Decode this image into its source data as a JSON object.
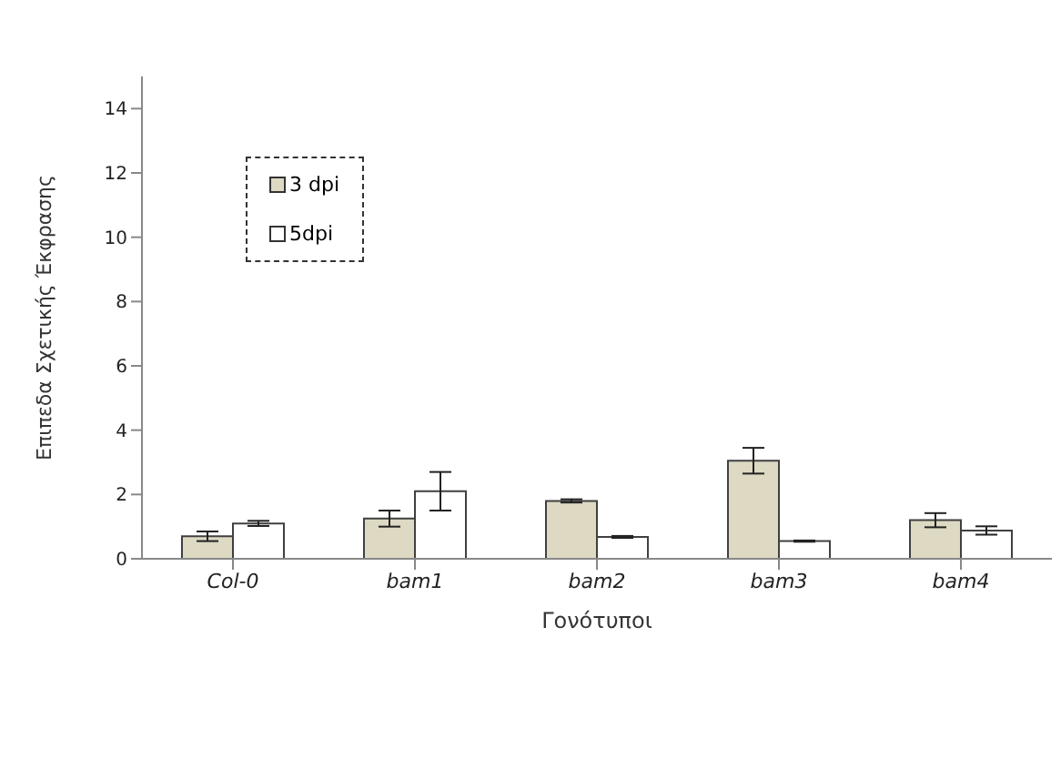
{
  "chart_data": {
    "type": "bar",
    "xlabel": "Γονότυποι",
    "ylabel": "Επιπεδα Σχετικής Έκφρασης",
    "categories": [
      "Col-0",
      "bam1",
      "bam2",
      "bam3",
      "bam4"
    ],
    "series": [
      {
        "name": "3 dpi",
        "color": "#ddd9c3",
        "values": [
          0.7,
          1.25,
          1.8,
          3.05,
          1.2
        ],
        "errors": [
          0.15,
          0.25,
          0.05,
          0.4,
          0.22
        ]
      },
      {
        "name": "5dpi",
        "color": "#ffffff",
        "values": [
          1.1,
          2.1,
          0.68,
          0.55,
          0.88
        ],
        "errors": [
          0.08,
          0.6,
          0.03,
          0.02,
          0.13
        ]
      }
    ],
    "ylim": [
      0,
      15
    ],
    "yticks": [
      0,
      2,
      4,
      6,
      8,
      10,
      12,
      14
    ],
    "grid": false,
    "legend": "top left"
  }
}
